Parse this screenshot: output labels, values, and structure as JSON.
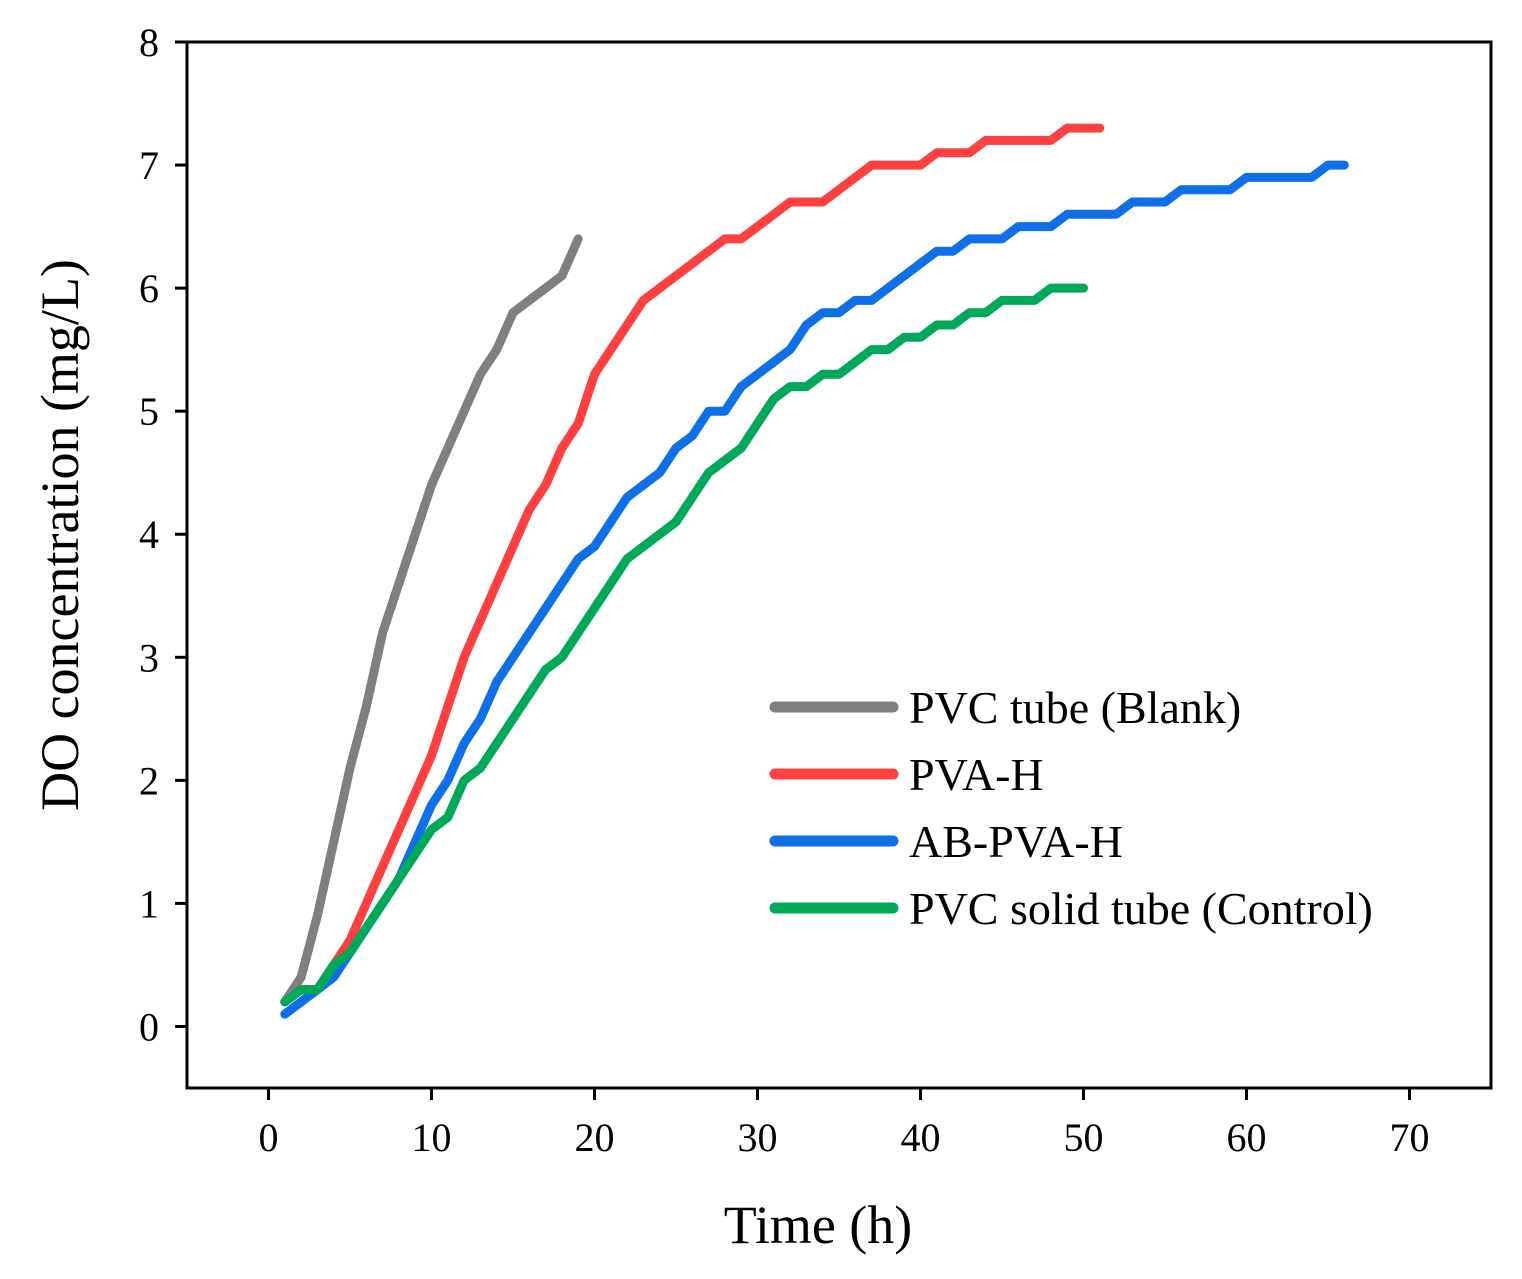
{
  "chart_data": {
    "type": "line",
    "title": "",
    "xlabel": "Time (h)",
    "ylabel": "DO concentration (mg/L)",
    "xlim": [
      -5,
      75
    ],
    "ylim": [
      -0.5,
      8
    ],
    "xticks": [
      0,
      10,
      20,
      30,
      40,
      50,
      60,
      70
    ],
    "yticks": [
      0,
      1,
      2,
      3,
      4,
      5,
      6,
      7,
      8
    ],
    "grid": false,
    "legend_position": "bottom-right",
    "series": [
      {
        "name": "PVC tube (Blank)",
        "color": "#7f7f7f",
        "x": [
          1,
          2,
          3,
          4,
          5,
          6,
          7,
          8,
          9,
          10,
          11,
          12,
          13,
          14,
          15,
          16,
          17,
          18,
          19
        ],
        "y": [
          0.2,
          0.4,
          0.9,
          1.5,
          2.1,
          2.6,
          3.2,
          3.6,
          4.0,
          4.4,
          4.7,
          5.0,
          5.3,
          5.5,
          5.8,
          5.9,
          6.0,
          6.1,
          6.4
        ]
      },
      {
        "name": "PVA-H",
        "color": "#ff4040",
        "x": [
          1,
          2,
          3,
          4,
          5,
          6,
          7,
          8,
          9,
          10,
          11,
          12,
          13,
          14,
          15,
          16,
          17,
          18,
          19,
          20,
          21,
          22,
          23,
          24,
          25,
          26,
          27,
          28,
          29,
          30,
          31,
          32,
          33,
          34,
          35,
          36,
          37,
          38,
          39,
          40,
          41,
          42,
          43,
          44,
          45,
          46,
          47,
          48,
          49,
          50,
          51
        ],
        "y": [
          0.2,
          0.3,
          0.3,
          0.5,
          0.7,
          1.0,
          1.3,
          1.6,
          1.9,
          2.2,
          2.6,
          3.0,
          3.3,
          3.6,
          3.9,
          4.2,
          4.4,
          4.7,
          4.9,
          5.3,
          5.5,
          5.7,
          5.9,
          6.0,
          6.1,
          6.2,
          6.3,
          6.4,
          6.4,
          6.5,
          6.6,
          6.7,
          6.7,
          6.7,
          6.8,
          6.9,
          7.0,
          7.0,
          7.0,
          7.0,
          7.1,
          7.1,
          7.1,
          7.2,
          7.2,
          7.2,
          7.2,
          7.2,
          7.3,
          7.3,
          7.3
        ]
      },
      {
        "name": "AB-PVA-H",
        "color": "#0f6fe6",
        "x": [
          1,
          2,
          3,
          4,
          5,
          6,
          7,
          8,
          9,
          10,
          11,
          12,
          13,
          14,
          15,
          16,
          17,
          18,
          19,
          20,
          21,
          22,
          23,
          24,
          25,
          26,
          27,
          28,
          29,
          30,
          31,
          32,
          33,
          34,
          35,
          36,
          37,
          38,
          39,
          40,
          41,
          42,
          43,
          44,
          45,
          46,
          47,
          48,
          49,
          50,
          51,
          52,
          53,
          54,
          55,
          56,
          57,
          58,
          59,
          60,
          61,
          62,
          63,
          64,
          65,
          66
        ],
        "y": [
          0.1,
          0.2,
          0.3,
          0.4,
          0.6,
          0.8,
          1.0,
          1.2,
          1.5,
          1.8,
          2.0,
          2.3,
          2.5,
          2.8,
          3.0,
          3.2,
          3.4,
          3.6,
          3.8,
          3.9,
          4.1,
          4.3,
          4.4,
          4.5,
          4.7,
          4.8,
          5.0,
          5.0,
          5.2,
          5.3,
          5.4,
          5.5,
          5.7,
          5.8,
          5.8,
          5.9,
          5.9,
          6.0,
          6.1,
          6.2,
          6.3,
          6.3,
          6.4,
          6.4,
          6.4,
          6.5,
          6.5,
          6.5,
          6.6,
          6.6,
          6.6,
          6.6,
          6.7,
          6.7,
          6.7,
          6.8,
          6.8,
          6.8,
          6.8,
          6.9,
          6.9,
          6.9,
          6.9,
          6.9,
          7.0,
          7.0
        ]
      },
      {
        "name": "PVC solid tube (Control)",
        "color": "#00a85a",
        "x": [
          1,
          2,
          3,
          4,
          5,
          6,
          7,
          8,
          9,
          10,
          11,
          12,
          13,
          14,
          15,
          16,
          17,
          18,
          19,
          20,
          21,
          22,
          23,
          24,
          25,
          26,
          27,
          28,
          29,
          30,
          31,
          32,
          33,
          34,
          35,
          36,
          37,
          38,
          39,
          40,
          41,
          42,
          43,
          44,
          45,
          46,
          47,
          48,
          49,
          50
        ],
        "y": [
          0.2,
          0.3,
          0.3,
          0.5,
          0.6,
          0.8,
          1.0,
          1.2,
          1.4,
          1.6,
          1.7,
          2.0,
          2.1,
          2.3,
          2.5,
          2.7,
          2.9,
          3.0,
          3.2,
          3.4,
          3.6,
          3.8,
          3.9,
          4.0,
          4.1,
          4.3,
          4.5,
          4.6,
          4.7,
          4.9,
          5.1,
          5.2,
          5.2,
          5.3,
          5.3,
          5.4,
          5.5,
          5.5,
          5.6,
          5.6,
          5.7,
          5.7,
          5.8,
          5.8,
          5.9,
          5.9,
          5.9,
          6.0,
          6.0,
          6.0
        ]
      }
    ]
  }
}
